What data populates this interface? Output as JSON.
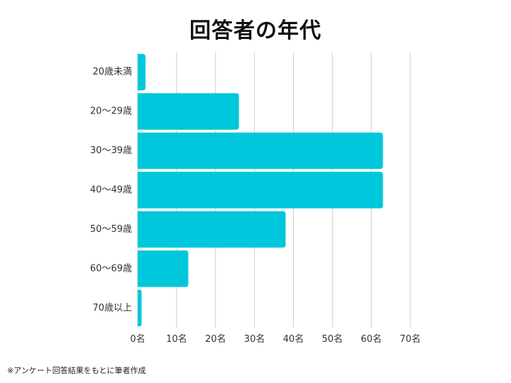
{
  "chart_data": {
    "type": "bar",
    "orientation": "horizontal",
    "title": "回答者の年代",
    "categories": [
      "20歳未満",
      "20～29歳",
      "30～39歳",
      "40～49歳",
      "50～59歳",
      "60～69歳",
      "70歳以上"
    ],
    "values": [
      2,
      26,
      63,
      63,
      38,
      13,
      1
    ],
    "xlim": [
      0,
      70
    ],
    "x_ticks": [
      0,
      10,
      20,
      30,
      40,
      50,
      60,
      70
    ],
    "x_tick_labels": [
      "0名",
      "10名",
      "20名",
      "30名",
      "40名",
      "50名",
      "60名",
      "70名"
    ],
    "xlabel": "",
    "ylabel": "",
    "grid": true,
    "legend": "none",
    "bar_color": "#00C7DC",
    "grid_color": "#CCCCCC"
  },
  "footnote": "※アンケート回答結果をもとに筆者作成"
}
